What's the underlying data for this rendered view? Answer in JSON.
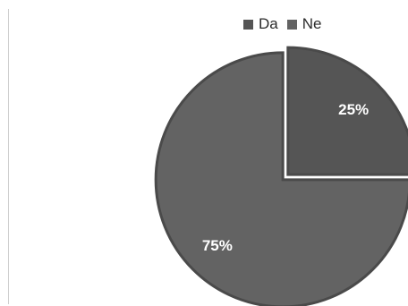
{
  "chart_data": {
    "type": "pie",
    "categories": [
      "Da",
      "Ne"
    ],
    "values": [
      25,
      75
    ],
    "data_labels": [
      "25%",
      "75%"
    ],
    "legend_position": "top",
    "colors": {
      "Da": "#555555",
      "Ne": "#636363",
      "slice_border": "#4a4a4a",
      "label": "#ffffff"
    }
  }
}
